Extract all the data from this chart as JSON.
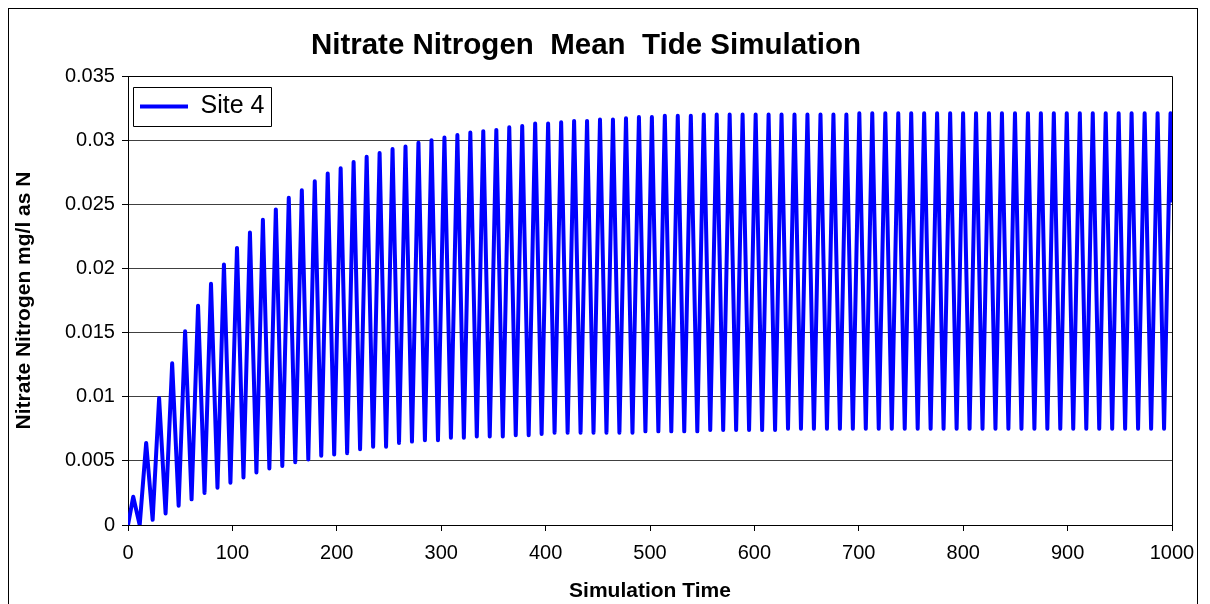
{
  "chart_data": {
    "type": "line",
    "title": "Nitrate Nitrogen  Mean  Tide Simulation",
    "xlabel": "Simulation Time",
    "ylabel": "Nitrate Nitrogen mg/l as N",
    "x": [
      0,
      5,
      11.2,
      17.4,
      23.6,
      29.8,
      36,
      42.3,
      48.5,
      54.7,
      60.9,
      67.1,
      73.3,
      79.5,
      85.7,
      91.9,
      98.1,
      104.4,
      110.6,
      116.8,
      123,
      129.2,
      135.4,
      141.6,
      147.8,
      154,
      160.2,
      166.5,
      172.7,
      178.9,
      185.1,
      191.3,
      197.5,
      203.7,
      209.9,
      216.1,
      222.3,
      228.6,
      234.8,
      241,
      247.2,
      253.4,
      259.6,
      265.8,
      272,
      278.2,
      284.4,
      290.7,
      296.9,
      303.1,
      309.3,
      315.5,
      321.7,
      327.9,
      334.1,
      340.3,
      346.5,
      352.8,
      359,
      365.2,
      371.4,
      377.6,
      383.8,
      390,
      396.2,
      402.4,
      408.6,
      414.9,
      421.1,
      427.3,
      433.5,
      439.7,
      445.9,
      452.1,
      458.3,
      464.5,
      470.7,
      477,
      483.2,
      489.4,
      495.6,
      501.8,
      508,
      514.2,
      520.4,
      526.6,
      532.8,
      539.1,
      545.3,
      551.5,
      557.7,
      563.9,
      570.1,
      576.3,
      582.5,
      588.7,
      594.9,
      601.2,
      607.4,
      613.6,
      619.8,
      626,
      632.2,
      638.4,
      644.6,
      650.8,
      657,
      663.3,
      669.5,
      675.7,
      681.9,
      688.1,
      694.3,
      700.5,
      706.7,
      712.9,
      719.1,
      725.4,
      731.6,
      737.8,
      744,
      750.2,
      756.4,
      762.6,
      768.8,
      775,
      781.2,
      787.5,
      793.7,
      799.9,
      806.1,
      812.3,
      818.5,
      824.7,
      830.9,
      837.1,
      843.3,
      849.6,
      855.8,
      862,
      868.2,
      874.4,
      880.6,
      886.8,
      893,
      899.2,
      905.4,
      911.7,
      917.9,
      924.1,
      930.3,
      936.5,
      942.7,
      948.9,
      955.1,
      961.3,
      967.5,
      973.8,
      980,
      986.2,
      992.4,
      998.6,
      1000
    ],
    "series": [
      {
        "name": "Site 4",
        "color": "#0000ff",
        "values": [
          0,
          0.0022,
          0,
          0.0064,
          0.0004,
          0.0099,
          0.0009,
          0.0126,
          0.0015,
          0.0151,
          0.002,
          0.0171,
          0.0025,
          0.0188,
          0.0029,
          0.0203,
          0.0033,
          0.0216,
          0.0037,
          0.0228,
          0.0041,
          0.0238,
          0.0044,
          0.0246,
          0.0046,
          0.0255,
          0.0049,
          0.0261,
          0.0051,
          0.0268,
          0.0054,
          0.0274,
          0.0055,
          0.0278,
          0.0056,
          0.0283,
          0.0059,
          0.0287,
          0.0061,
          0.029,
          0.0061,
          0.0293,
          0.0064,
          0.0295,
          0.0065,
          0.0298,
          0.0066,
          0.03,
          0.0066,
          0.0302,
          0.0068,
          0.0304,
          0.0068,
          0.0306,
          0.0069,
          0.0307,
          0.0069,
          0.0308,
          0.0069,
          0.031,
          0.007,
          0.0311,
          0.007,
          0.0313,
          0.0071,
          0.0313,
          0.0072,
          0.0314,
          0.0072,
          0.0315,
          0.0072,
          0.0315,
          0.0072,
          0.0316,
          0.0072,
          0.0316,
          0.0072,
          0.0317,
          0.0072,
          0.0318,
          0.0073,
          0.0318,
          0.0073,
          0.0319,
          0.0073,
          0.0319,
          0.0073,
          0.0319,
          0.0073,
          0.032,
          0.0074,
          0.032,
          0.0074,
          0.032,
          0.0074,
          0.032,
          0.0074,
          0.032,
          0.0074,
          0.032,
          0.0074,
          0.032,
          0.0075,
          0.032,
          0.0075,
          0.032,
          0.0075,
          0.032,
          0.0075,
          0.032,
          0.0075,
          0.032,
          0.0075,
          0.0321,
          0.0075,
          0.0321,
          0.0075,
          0.0321,
          0.0075,
          0.0321,
          0.0075,
          0.0321,
          0.0075,
          0.0321,
          0.0075,
          0.0321,
          0.0075,
          0.0321,
          0.0075,
          0.0321,
          0.0075,
          0.0321,
          0.0075,
          0.0321,
          0.0075,
          0.0321,
          0.0075,
          0.0321,
          0.0075,
          0.0321,
          0.0075,
          0.0321,
          0.0075,
          0.0321,
          0.0075,
          0.0321,
          0.0075,
          0.0321,
          0.0075,
          0.0321,
          0.0075,
          0.0321,
          0.0075,
          0.0321,
          0.0075,
          0.0321,
          0.0075,
          0.0321,
          0.0075,
          0.0321,
          0.0075,
          0.0321,
          0.0253
        ]
      }
    ],
    "xlim": [
      0,
      1000
    ],
    "ylim": [
      0,
      0.035
    ],
    "xticks": [
      0,
      100,
      200,
      300,
      400,
      500,
      600,
      700,
      800,
      900,
      1000
    ],
    "yticks": [
      0,
      0.005,
      0.01,
      0.015,
      0.02,
      0.025,
      0.03,
      0.035
    ],
    "grid": "y",
    "legend": "top left",
    "line_style": "solid"
  }
}
